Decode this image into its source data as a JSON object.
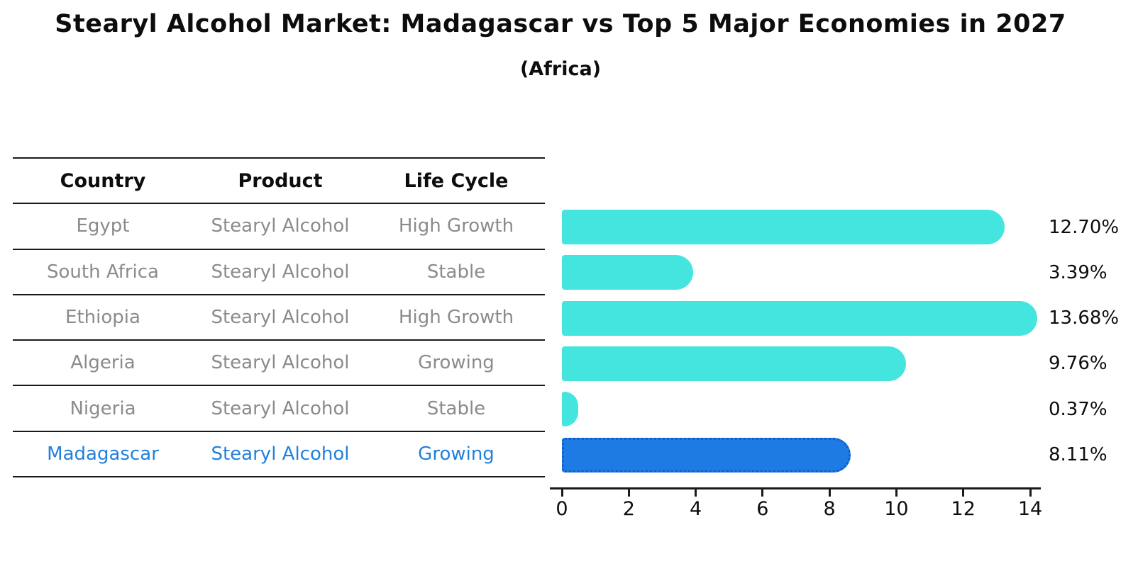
{
  "title": "Stearyl Alcohol Market: Madagascar vs Top 5 Major Economies in 2027",
  "subtitle": "(Africa)",
  "table": {
    "headers": [
      "Country",
      "Product",
      "Life Cycle"
    ],
    "rows": [
      {
        "country": "Egypt",
        "product": "Stearyl Alcohol",
        "life_cycle": "High Growth",
        "highlight": false
      },
      {
        "country": "South Africa",
        "product": "Stearyl Alcohol",
        "life_cycle": "Stable",
        "highlight": false
      },
      {
        "country": "Ethiopia",
        "product": "Stearyl Alcohol",
        "life_cycle": "High Growth",
        "highlight": false
      },
      {
        "country": "Algeria",
        "product": "Stearyl Alcohol",
        "life_cycle": "Growing",
        "highlight": false
      },
      {
        "country": "Nigeria",
        "product": "Stearyl Alcohol",
        "life_cycle": "Stable",
        "highlight": false
      },
      {
        "country": "Madagascar",
        "product": "Stearyl Alcohol",
        "life_cycle": "Growing",
        "highlight": true
      }
    ]
  },
  "chart_data": {
    "type": "bar",
    "orientation": "horizontal",
    "title": "Stearyl Alcohol Market: Madagascar vs Top 5 Major Economies in 2027",
    "subtitle": "(Africa)",
    "categories": [
      "Egypt",
      "South Africa",
      "Ethiopia",
      "Algeria",
      "Nigeria",
      "Madagascar"
    ],
    "values": [
      12.7,
      3.39,
      13.68,
      9.76,
      0.37,
      8.11
    ],
    "value_labels": [
      "12.70%",
      "3.39%",
      "13.68%",
      "9.76%",
      "0.37%",
      "8.11%"
    ],
    "unit": "percent",
    "xlim": [
      0,
      14
    ],
    "x_ticks": [
      0,
      2,
      4,
      6,
      8,
      10,
      12,
      14
    ],
    "grid": false,
    "legend": false,
    "bar_color": "#45E5DF",
    "highlight_color": "#1E7BE4",
    "highlight_index": 5
  },
  "colors": {
    "background": "#ffffff",
    "bar_cyan": "#45E5DF",
    "bar_blue": "#1E7BE4",
    "highlight_text": "#2280DD",
    "table_text": "#8b8b8b",
    "header_text": "#0d0d0d",
    "axis": "#1a1a1a"
  }
}
